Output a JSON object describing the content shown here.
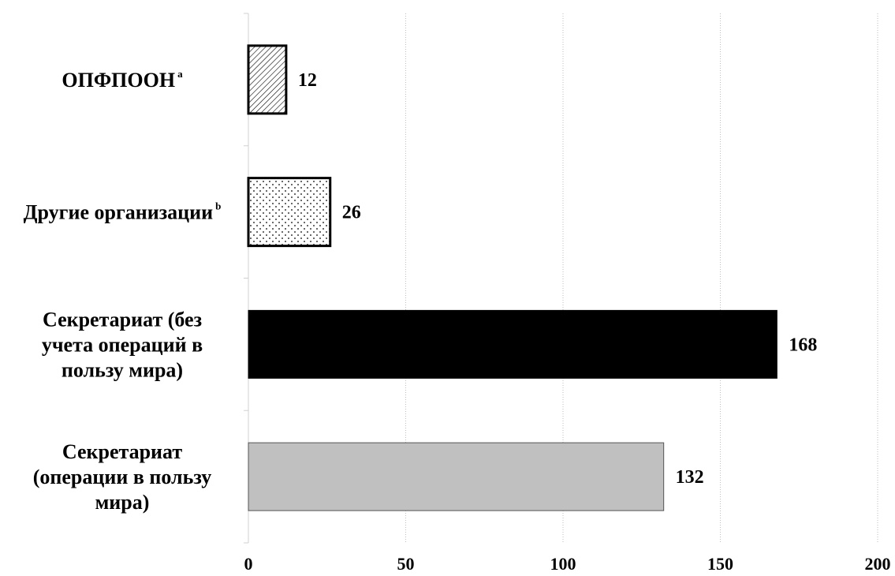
{
  "chart_data": {
    "type": "bar",
    "orientation": "horizontal",
    "title": "",
    "xlabel": "",
    "ylabel": "",
    "xlim": [
      0,
      200
    ],
    "x_ticks": [
      0,
      50,
      100,
      150,
      200
    ],
    "grid": "vertical dotted",
    "legend": "none",
    "categories": [
      {
        "lines": [
          "ОПФПООН"
        ],
        "sup": "a"
      },
      {
        "lines": [
          "Другие организации"
        ],
        "sup": "b"
      },
      {
        "lines": [
          "Секретариат (без",
          "учета операций в",
          "пользу мира)"
        ],
        "sup": ""
      },
      {
        "lines": [
          "Секретариат",
          "(операции в пользу",
          "мира)"
        ],
        "sup": ""
      }
    ],
    "values": [
      12,
      26,
      168,
      132
    ],
    "value_labels": [
      "12",
      "26",
      "168",
      "132"
    ],
    "bar_styles": [
      {
        "fill": "hatch",
        "color": "#000000"
      },
      {
        "fill": "dots",
        "color": "#000000"
      },
      {
        "fill": "solid",
        "color": "#000000"
      },
      {
        "fill": "solid",
        "color": "#c0c0c0"
      }
    ]
  }
}
